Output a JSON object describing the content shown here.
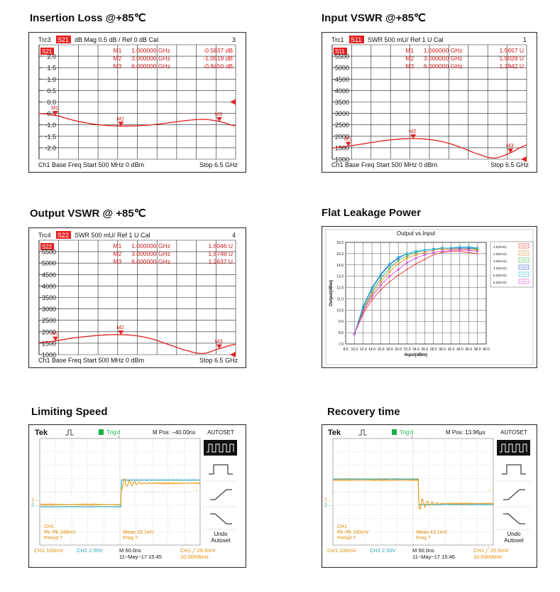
{
  "titles": {
    "insertion_loss": "Insertion Loss @+85℃",
    "input_vswr": "Input VSWR @+85℃",
    "output_vswr": "Output VSWR  @ +85℃",
    "flat_leakage": "Flat Leakage Power",
    "limiting_speed": "Limiting Speed",
    "recovery_time": "Recovery time"
  },
  "vna": {
    "insertion_loss": {
      "trace": "Trc3",
      "param": "S21",
      "scale": "dB Mag  0.5 dB /  Ref 0 dB    Cal",
      "ch": "3",
      "markers": [
        {
          "label": "M1",
          "freq": "1.000000  GHz",
          "value": "-0.5837  dB"
        },
        {
          "label": "M2",
          "freq": "3.000000  GHz",
          "value": "-1.0519  dB"
        },
        {
          "label": "M3",
          "freq": "6.000000  GHz",
          "value": "-0.8450  dB"
        }
      ],
      "yticks": [
        "2.0",
        "1.5",
        "1.0",
        "0.5",
        "0.0",
        "-0.5",
        "-1.0",
        "-1.5",
        "-2.0"
      ],
      "footer_left": "Ch1  Base Freq  Start  500 MHz  0 dBm",
      "footer_right": "Stop  6.5 GHz"
    },
    "input_vswr": {
      "trace": "Trc1",
      "param": "S11",
      "scale": "SWR  500 mU/  Ref 1 U     Cal",
      "ch": "1",
      "markers": [
        {
          "label": "M1",
          "freq": "1.000000  GHz",
          "value": "1.5657  U"
        },
        {
          "label": "M2",
          "freq": "3.000000  GHz",
          "value": "1.9028  U"
        },
        {
          "label": "M3",
          "freq": "6.000000  GHz",
          "value": "1.2842  U"
        }
      ],
      "yticks": [
        "5500",
        "5000",
        "4500",
        "4000",
        "3500",
        "3000",
        "2500",
        "2000",
        "1500",
        "1000"
      ],
      "footer_left": "Ch1  Base Freq  Start  500 MHz  0 dBm",
      "footer_right": "Stop  6.5 GHz"
    },
    "output_vswr": {
      "trace": "Trc4",
      "param": "S22",
      "scale": "SWR  500 mU/  Ref 1 U     Cal",
      "ch": "4",
      "markers": [
        {
          "label": "M1",
          "freq": "1.000000  GHz",
          "value": "1.6046  U"
        },
        {
          "label": "M2",
          "freq": "3.000000  GHz",
          "value": "1.8748  U"
        },
        {
          "label": "M3",
          "freq": "6.000000  GHz",
          "value": "1.2637  U"
        }
      ],
      "yticks": [
        "5500",
        "5000",
        "4500",
        "4000",
        "3500",
        "3000",
        "2500",
        "2000",
        "1500",
        "1000"
      ],
      "footer_left": "Ch1  Base Freq  Start  500 MHz  0 dBm",
      "footer_right": "Stop  6.5 GHz"
    }
  },
  "scope": {
    "limiting_speed": {
      "brand": "Tek",
      "trig": "Trig'd",
      "mpos": "M Pos: −40.00ns",
      "autoset": "AUTOSET",
      "undo": "Undo",
      "undo2": "Autoset",
      "meas_left": [
        "CH1",
        "Pk−Pk 248mV",
        "Period ?"
      ],
      "meas_right": [
        "Mean 29.1mV",
        "Freq ?"
      ],
      "ch1": "CH1  100mV",
      "ch2": "CH2  2.00V",
      "time": "M 50.0ns",
      "date": "11−May−17 15:45",
      "trig_info": "CH1 ╱ 26.5mV",
      "freq_info": "10.0000kHz"
    },
    "recovery_time": {
      "brand": "Tek",
      "trig": "Trig'd",
      "mpos": "M Pos: 13.96µs",
      "autoset": "AUTOSET",
      "undo": "Undo",
      "undo2": "Autoset",
      "meas_left": [
        "CH1",
        "Pk−Pk 240mV",
        "Period ?"
      ],
      "meas_right": [
        "Mean 43.1mV",
        "Freq ?"
      ],
      "ch1": "CH1  100mV",
      "ch2": "CH2  2.00V",
      "time": "M 50.0ns",
      "date": "11−May−17 15:46",
      "trig_info": "CH1 ╱ 26.5mV",
      "freq_info": "10.0000kHz"
    }
  },
  "chart_data": [
    {
      "type": "line",
      "title": "Insertion Loss @+85℃",
      "parameter": "S21",
      "x_unit": "GHz",
      "xlim": [
        0.5,
        6.5
      ],
      "ylim": [
        -2.5,
        2.5
      ],
      "yunit": "dB",
      "series": [
        {
          "name": "S21",
          "x": [
            0.5,
            1.0,
            1.5,
            2.0,
            2.5,
            3.0,
            3.5,
            4.0,
            4.5,
            5.0,
            5.5,
            6.0,
            6.5
          ],
          "y": [
            -0.5,
            -0.58,
            -0.78,
            -0.93,
            -1.02,
            -1.05,
            -1.04,
            -0.99,
            -0.9,
            -0.81,
            -0.76,
            -0.85,
            -1.05
          ]
        }
      ]
    },
    {
      "type": "line",
      "title": "Input VSWR @+85℃",
      "parameter": "S11",
      "x_unit": "GHz",
      "xlim": [
        0.5,
        6.5
      ],
      "ylim": [
        1.0,
        6.0
      ],
      "yunit": "U",
      "series": [
        {
          "name": "S11",
          "x": [
            0.5,
            1.0,
            1.5,
            2.0,
            2.5,
            3.0,
            3.5,
            4.0,
            4.5,
            5.0,
            5.5,
            6.0,
            6.5
          ],
          "y": [
            1.49,
            1.57,
            1.68,
            1.79,
            1.87,
            1.9,
            1.86,
            1.73,
            1.5,
            1.22,
            1.05,
            1.28,
            1.62
          ]
        }
      ]
    },
    {
      "type": "line",
      "title": "Output VSWR  @ +85℃",
      "parameter": "S22",
      "x_unit": "GHz",
      "xlim": [
        0.5,
        6.5
      ],
      "ylim": [
        1.0,
        6.0
      ],
      "yunit": "U",
      "series": [
        {
          "name": "S22",
          "x": [
            0.5,
            1.0,
            1.5,
            2.0,
            2.5,
            3.0,
            3.5,
            4.0,
            4.5,
            5.0,
            5.5,
            6.0,
            6.5
          ],
          "y": [
            1.52,
            1.6,
            1.72,
            1.8,
            1.86,
            1.87,
            1.82,
            1.66,
            1.42,
            1.18,
            1.05,
            1.26,
            1.45
          ]
        }
      ]
    },
    {
      "type": "line",
      "title": "Output vs.Input",
      "xlabel": "Input(dBm)",
      "ylabel": "Output(dBm)",
      "xlim": [
        8.0,
        40.0
      ],
      "ylim": [
        7.0,
        16.0
      ],
      "xticks": [
        "8.0",
        "10.0",
        "12.0",
        "14.0",
        "16.0",
        "18.0",
        "20.0",
        "22.0",
        "24.0",
        "26.0",
        "28.0",
        "30.0",
        "32.0",
        "34.0",
        "36.0",
        "38.0",
        "40.0"
      ],
      "yticks": [
        "7.0",
        "8.0",
        "9.0",
        "10.0",
        "11.0",
        "12.0",
        "13.0",
        "14.0",
        "15.0",
        "16.0"
      ],
      "x": [
        10,
        12,
        14,
        16,
        18,
        20,
        22,
        24,
        26,
        28,
        30,
        32,
        34,
        36,
        38
      ],
      "series": [
        {
          "name": "1.0(GHz)",
          "color": "#e63333",
          "values": [
            7.9,
            9.7,
            10.9,
            11.8,
            12.5,
            13.1,
            13.6,
            14.1,
            14.5,
            14.9,
            15.1,
            15.2,
            15.2,
            15.1,
            15.0
          ]
        },
        {
          "name": "2.0(GHz)",
          "color": "#e08a2e",
          "values": [
            7.9,
            10.0,
            11.4,
            12.5,
            13.4,
            14.1,
            14.6,
            14.9,
            15.1,
            15.3,
            15.4,
            15.4,
            15.4,
            15.4,
            15.3
          ]
        },
        {
          "name": "3.0(GHz)",
          "color": "#3ab34a",
          "values": [
            7.9,
            10.1,
            11.6,
            12.8,
            13.7,
            14.4,
            14.8,
            15.1,
            15.3,
            15.4,
            15.5,
            15.5,
            15.5,
            15.5,
            15.4
          ]
        },
        {
          "name": "4.0(GHz)",
          "color": "#2e4fd6",
          "values": [
            7.9,
            10.3,
            11.9,
            13.1,
            14.0,
            14.6,
            15.0,
            15.2,
            15.3,
            15.4,
            15.5,
            15.5,
            15.5,
            15.5,
            15.5
          ]
        },
        {
          "name": "5.0(GHz)",
          "color": "#25b8d6",
          "values": [
            7.9,
            10.4,
            12.0,
            13.2,
            14.1,
            14.7,
            15.0,
            15.2,
            15.3,
            15.4,
            15.5,
            15.5,
            15.6,
            15.6,
            15.5
          ]
        },
        {
          "name": "6.0(GHz)",
          "color": "#d64ad6",
          "values": [
            7.9,
            9.9,
            11.2,
            12.2,
            13.0,
            13.6,
            14.2,
            14.6,
            14.9,
            15.1,
            15.2,
            15.3,
            15.3,
            15.3,
            15.2
          ]
        }
      ]
    }
  ]
}
